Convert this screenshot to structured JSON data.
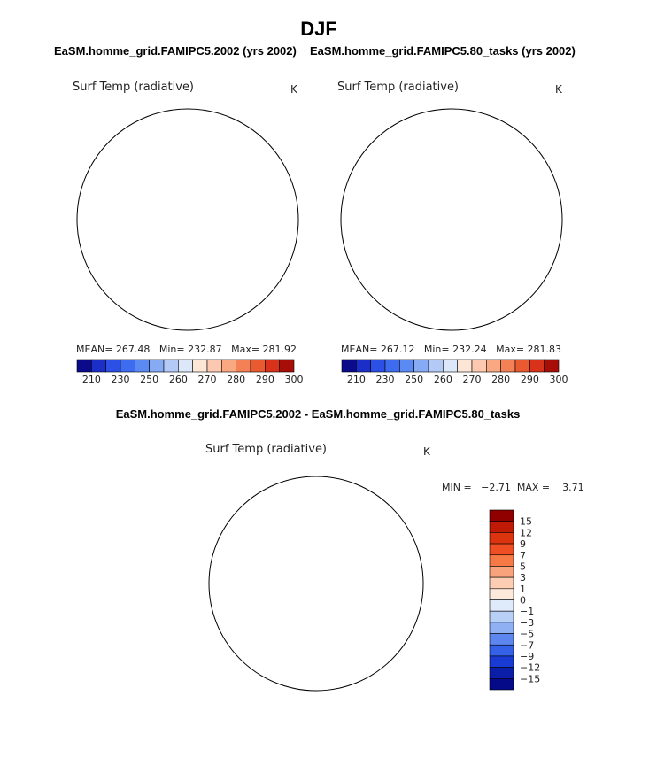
{
  "figure": {
    "season": "DJF",
    "panel_left_title": "EaSM.homme_grid.FAMIPC5.2002 (yrs 2002)",
    "panel_right_title": "EaSM.homme_grid.FAMIPC5.80_tasks (yrs 2002)",
    "diff_title": "EaSM.homme_grid.FAMIPC5.2002 - EaSM.homme_grid.FAMIPC5.80_tasks"
  },
  "panels": [
    {
      "variable": "Surf Temp (radiative)",
      "units": "K",
      "stats": "MEAN= 267.48   Min= 232.87   Max= 281.92"
    },
    {
      "variable": "Surf Temp (radiative)",
      "units": "K",
      "stats": "MEAN= 267.12   Min= 232.24   Max= 281.83"
    }
  ],
  "diff_panel": {
    "variable": "Surf Temp (radiative)",
    "units": "K",
    "stats": "MIN =   −2.71  MAX =    3.71"
  },
  "colorbar_main": {
    "labels": [
      "210",
      "230",
      "250",
      "260",
      "270",
      "280",
      "290",
      "300"
    ],
    "colors": [
      "#0a0a8a",
      "#1c2ec8",
      "#2c4fe6",
      "#3d6cf0",
      "#5a8af2",
      "#86aaf4",
      "#b4caf6",
      "#dce8fa",
      "#fde6d6",
      "#fcc9b0",
      "#f9a882",
      "#f48056",
      "#ea5a30",
      "#d8321a",
      "#a80e08"
    ]
  },
  "colorbar_diff": {
    "labels": [
      "15",
      "12",
      "9",
      "7",
      "5",
      "3",
      "1",
      "0",
      "−1",
      "−3",
      "−5",
      "−7",
      "−9",
      "−12",
      "−15"
    ],
    "colors": [
      "#900000",
      "#c01a06",
      "#dd3410",
      "#ef4f22",
      "#f77a46",
      "#f9a37c",
      "#fccdb2",
      "#fde9db",
      "#dfeafa",
      "#b8cff6",
      "#8fb0f2",
      "#5d87ee",
      "#3560e8",
      "#1a3ad4",
      "#0b1eaa",
      "#040a88"
    ]
  }
}
